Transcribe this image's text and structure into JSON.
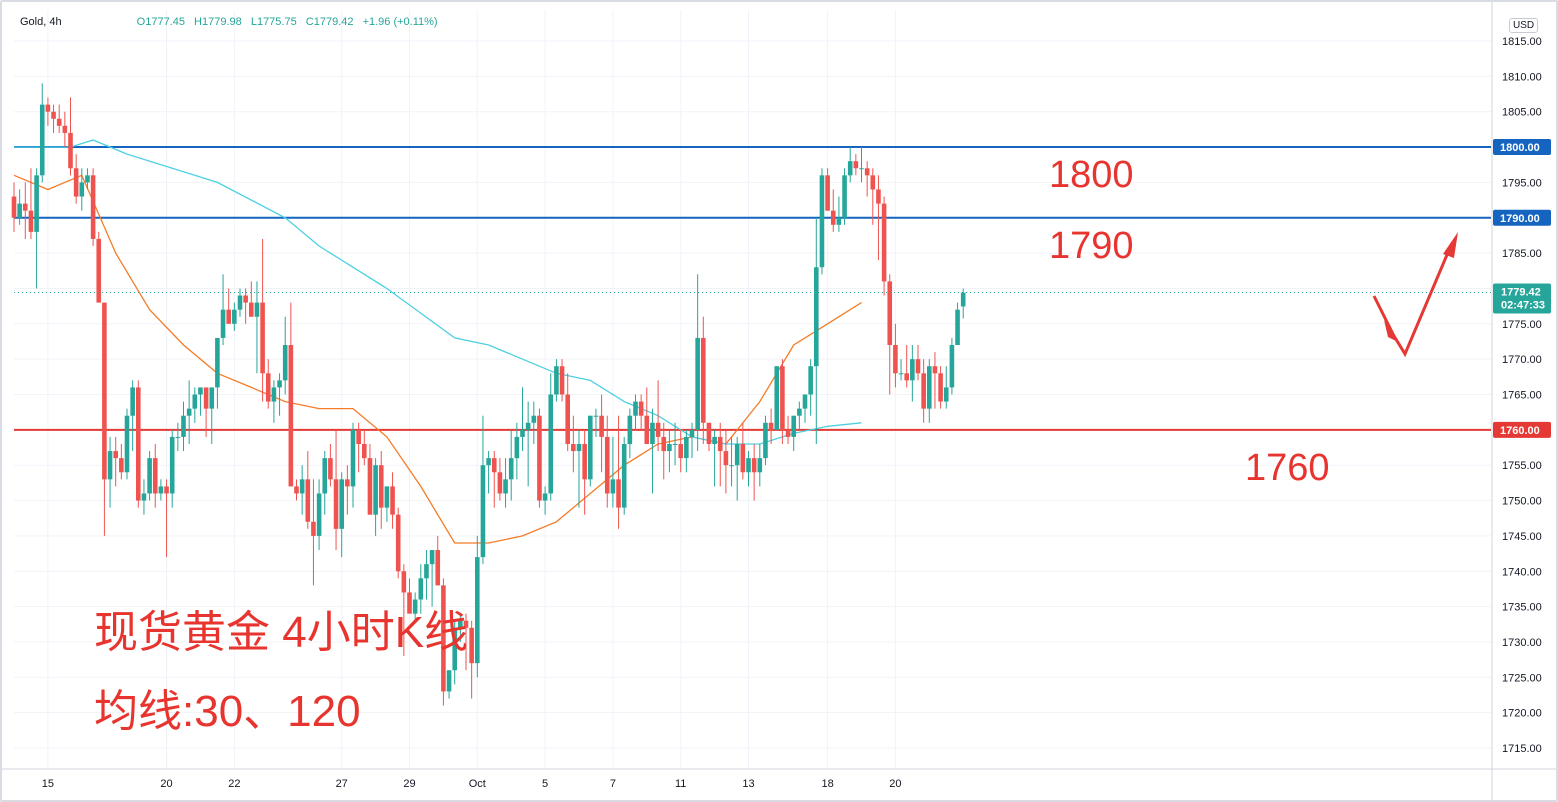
{
  "legend": {
    "symbol": "Gold, 4h",
    "open": "O1777.45",
    "high": "H1779.98",
    "low": "L1775.75",
    "close": "C1779.42",
    "change": "+1.96 (+0.11%)"
  },
  "currency": "USD",
  "price_tag": {
    "price": "1779.42",
    "countdown": "02:47:33"
  },
  "annotations": {
    "level_1800": "1800",
    "level_1790": "1790",
    "level_1760": "1760",
    "title": "现货黄金 4小时K线",
    "ma_note": "均线:30、120"
  },
  "colors": {
    "up": "#26a69a",
    "down": "#ef5350",
    "ma30": "#f57c28",
    "ma120": "#4dd0e1",
    "hline_blue": "#1565c0",
    "hline_red": "#e53935",
    "annotation": "#e8342e",
    "arrow": "#e53935"
  },
  "chart_data": {
    "type": "candlestick",
    "title": "现货黄金 4小时K线",
    "symbol": "Gold",
    "interval": "4h",
    "ylim": [
      1711,
      1818
    ],
    "y_ticks": [
      1715,
      1720,
      1725,
      1730,
      1735,
      1740,
      1745,
      1750,
      1755,
      1760,
      1765,
      1770,
      1775,
      1780,
      1785,
      1790,
      1795,
      1800,
      1805,
      1810,
      1815
    ],
    "x_labels": [
      {
        "label": "15",
        "bar": 6
      },
      {
        "label": "20",
        "bar": 27
      },
      {
        "label": "22",
        "bar": 39
      },
      {
        "label": "27",
        "bar": 58
      },
      {
        "label": "29",
        "bar": 70
      },
      {
        "label": "Oct",
        "bar": 82
      },
      {
        "label": "5",
        "bar": 94
      },
      {
        "label": "7",
        "bar": 106
      },
      {
        "label": "11",
        "bar": 118
      },
      {
        "label": "13",
        "bar": 130
      },
      {
        "label": "18",
        "bar": 144
      },
      {
        "label": "20",
        "bar": 156
      }
    ],
    "horizontal_lines": [
      {
        "price": 1800,
        "label": "1800.00",
        "color": "blue"
      },
      {
        "price": 1790,
        "label": "1790.00",
        "color": "blue"
      },
      {
        "price": 1760,
        "label": "1760.00",
        "color": "red"
      }
    ],
    "moving_averages": [
      {
        "name": "MA30",
        "color": "#f57c28",
        "points": [
          [
            0,
            1796
          ],
          [
            6,
            1794
          ],
          [
            12,
            1796
          ],
          [
            18,
            1785
          ],
          [
            24,
            1777
          ],
          [
            30,
            1772
          ],
          [
            36,
            1768
          ],
          [
            42,
            1766
          ],
          [
            48,
            1764
          ],
          [
            54,
            1763
          ],
          [
            60,
            1763
          ],
          [
            66,
            1759
          ],
          [
            72,
            1752
          ],
          [
            78,
            1744
          ],
          [
            84,
            1744
          ],
          [
            90,
            1745
          ],
          [
            96,
            1747
          ],
          [
            102,
            1751
          ],
          [
            108,
            1755
          ],
          [
            114,
            1758
          ],
          [
            120,
            1759
          ],
          [
            126,
            1758
          ],
          [
            132,
            1764
          ],
          [
            138,
            1772
          ],
          [
            144,
            1775
          ],
          [
            150,
            1778
          ]
        ]
      },
      {
        "name": "MA120",
        "color": "#4dd0e1",
        "points": [
          [
            0,
            1800
          ],
          [
            10,
            1800
          ],
          [
            14,
            1801
          ],
          [
            20,
            1799
          ],
          [
            36,
            1795
          ],
          [
            48,
            1790
          ],
          [
            54,
            1786
          ],
          [
            66,
            1780
          ],
          [
            78,
            1773
          ],
          [
            84,
            1772
          ],
          [
            96,
            1768
          ],
          [
            102,
            1767
          ],
          [
            108,
            1764
          ],
          [
            114,
            1762
          ],
          [
            120,
            1759
          ],
          [
            126,
            1758
          ],
          [
            132,
            1758
          ],
          [
            138,
            1759.5
          ],
          [
            144,
            1760.5
          ],
          [
            150,
            1761
          ]
        ]
      }
    ],
    "bars": [
      [
        1793,
        1795,
        1788,
        1790
      ],
      [
        1790,
        1794,
        1789,
        1792
      ],
      [
        1792,
        1795,
        1787,
        1791
      ],
      [
        1791,
        1797,
        1787,
        1788
      ],
      [
        1788,
        1797,
        1780,
        1796
      ],
      [
        1796,
        1809,
        1795,
        1806
      ],
      [
        1806,
        1807,
        1803,
        1805
      ],
      [
        1805,
        1806,
        1802,
        1804
      ],
      [
        1804,
        1806,
        1802,
        1803
      ],
      [
        1803,
        1805,
        1800,
        1802
      ],
      [
        1802,
        1807,
        1796,
        1797
      ],
      [
        1797,
        1799,
        1792,
        1793
      ],
      [
        1793,
        1797,
        1791,
        1795
      ],
      [
        1795,
        1797,
        1794,
        1796
      ],
      [
        1796,
        1797,
        1786,
        1787
      ],
      [
        1787,
        1788,
        1778,
        1778
      ],
      [
        1778,
        1778,
        1745,
        1753
      ],
      [
        1753,
        1759,
        1749,
        1757
      ],
      [
        1757,
        1759,
        1752,
        1756
      ],
      [
        1756,
        1758,
        1753,
        1754
      ],
      [
        1754,
        1763,
        1753,
        1762
      ],
      [
        1762,
        1767,
        1757,
        1766
      ],
      [
        1766,
        1767,
        1749,
        1750
      ],
      [
        1750,
        1753,
        1748,
        1751
      ],
      [
        1751,
        1757,
        1750,
        1756
      ],
      [
        1756,
        1758,
        1749,
        1751
      ],
      [
        1751,
        1753,
        1750,
        1752
      ],
      [
        1752,
        1753,
        1742,
        1751
      ],
      [
        1751,
        1760,
        1749,
        1759
      ],
      [
        1759,
        1761,
        1757,
        1759
      ],
      [
        1759,
        1764,
        1757,
        1762
      ],
      [
        1762,
        1767,
        1758,
        1763
      ],
      [
        1763,
        1766,
        1761,
        1765
      ],
      [
        1765,
        1766,
        1762,
        1766
      ],
      [
        1766,
        1766,
        1759,
        1763
      ],
      [
        1763,
        1766,
        1758,
        1766
      ],
      [
        1766,
        1773,
        1763,
        1773
      ],
      [
        1773,
        1782,
        1772,
        1777
      ],
      [
        1777,
        1780,
        1776,
        1775
      ],
      [
        1775,
        1778,
        1774,
        1777
      ],
      [
        1777,
        1780,
        1776,
        1779
      ],
      [
        1779,
        1780,
        1775,
        1778
      ],
      [
        1778,
        1781,
        1776,
        1776
      ],
      [
        1776,
        1781,
        1768,
        1778
      ],
      [
        1778,
        1787,
        1764,
        1768
      ],
      [
        1768,
        1770,
        1763,
        1764
      ],
      [
        1764,
        1767,
        1761,
        1766
      ],
      [
        1766,
        1768,
        1762,
        1767
      ],
      [
        1767,
        1776,
        1765,
        1772
      ],
      [
        1772,
        1778,
        1760,
        1752
      ],
      [
        1752,
        1753,
        1750,
        1751
      ],
      [
        1751,
        1755,
        1748,
        1753
      ],
      [
        1753,
        1757,
        1746,
        1747
      ],
      [
        1747,
        1753,
        1738,
        1745
      ],
      [
        1745,
        1753,
        1743,
        1751
      ],
      [
        1751,
        1757,
        1748,
        1756
      ],
      [
        1756,
        1758,
        1752,
        1753
      ],
      [
        1753,
        1760,
        1743,
        1746
      ],
      [
        1746,
        1754,
        1742,
        1753
      ],
      [
        1753,
        1755,
        1748,
        1752
      ],
      [
        1752,
        1761,
        1749,
        1760
      ],
      [
        1760,
        1761,
        1754,
        1758
      ],
      [
        1758,
        1760,
        1755,
        1756
      ],
      [
        1756,
        1758,
        1748,
        1748
      ],
      [
        1748,
        1756,
        1745,
        1755
      ],
      [
        1755,
        1757,
        1746,
        1749
      ],
      [
        1749,
        1752,
        1747,
        1752
      ],
      [
        1752,
        1754,
        1746,
        1748
      ],
      [
        1748,
        1749,
        1739,
        1740
      ],
      [
        1740,
        1741,
        1728,
        1737
      ],
      [
        1737,
        1739,
        1734,
        1734
      ],
      [
        1734,
        1737,
        1733,
        1736
      ],
      [
        1736,
        1741,
        1734,
        1739
      ],
      [
        1739,
        1743,
        1736,
        1741
      ],
      [
        1741,
        1743,
        1735,
        1743
      ],
      [
        1743,
        1745,
        1738,
        1738
      ],
      [
        1738,
        1739,
        1721,
        1723
      ],
      [
        1723,
        1726,
        1722,
        1726
      ],
      [
        1726,
        1733,
        1724,
        1732
      ],
      [
        1732,
        1734,
        1730,
        1733
      ],
      [
        1733,
        1734,
        1726,
        1732
      ],
      [
        1732,
        1733,
        1722,
        1727
      ],
      [
        1727,
        1745,
        1725,
        1742
      ],
      [
        1742,
        1762,
        1741,
        1755
      ],
      [
        1755,
        1757,
        1751,
        1756
      ],
      [
        1756,
        1757,
        1749,
        1754
      ],
      [
        1754,
        1756,
        1750,
        1751
      ],
      [
        1751,
        1756,
        1749,
        1753
      ],
      [
        1753,
        1760,
        1750,
        1756
      ],
      [
        1756,
        1761,
        1753,
        1759
      ],
      [
        1759,
        1766,
        1757,
        1760
      ],
      [
        1760,
        1764,
        1752,
        1761
      ],
      [
        1761,
        1764,
        1758,
        1762
      ],
      [
        1762,
        1763,
        1749,
        1750
      ],
      [
        1750,
        1752,
        1748,
        1751
      ],
      [
        1751,
        1768,
        1750,
        1765
      ],
      [
        1765,
        1770,
        1764,
        1769
      ],
      [
        1769,
        1770,
        1764,
        1765
      ],
      [
        1765,
        1768,
        1757,
        1758
      ],
      [
        1758,
        1762,
        1754,
        1757
      ],
      [
        1757,
        1760,
        1749,
        1758
      ],
      [
        1758,
        1760,
        1748,
        1753
      ],
      [
        1753,
        1762,
        1752,
        1762
      ],
      [
        1762,
        1763,
        1759,
        1762
      ],
      [
        1762,
        1765,
        1754,
        1759
      ],
      [
        1759,
        1762,
        1749,
        1751
      ],
      [
        1751,
        1759,
        1749,
        1753
      ],
      [
        1753,
        1762,
        1746,
        1749
      ],
      [
        1749,
        1759,
        1748,
        1758
      ],
      [
        1758,
        1763,
        1756,
        1762
      ],
      [
        1762,
        1765,
        1760,
        1764
      ],
      [
        1764,
        1765,
        1760,
        1762
      ],
      [
        1762,
        1766,
        1758,
        1758
      ],
      [
        1758,
        1763,
        1751,
        1761
      ],
      [
        1761,
        1767,
        1757,
        1759
      ],
      [
        1759,
        1761,
        1753,
        1757
      ],
      [
        1757,
        1760,
        1754,
        1758
      ],
      [
        1758,
        1761,
        1755,
        1758
      ],
      [
        1758,
        1760,
        1754,
        1756
      ],
      [
        1756,
        1760,
        1754,
        1759
      ],
      [
        1759,
        1761,
        1756,
        1760
      ],
      [
        1760,
        1782,
        1757,
        1773
      ],
      [
        1773,
        1776,
        1758,
        1761
      ],
      [
        1761,
        1761,
        1757,
        1758
      ],
      [
        1758,
        1760,
        1752,
        1759
      ],
      [
        1759,
        1761,
        1752,
        1757
      ],
      [
        1757,
        1760,
        1751,
        1755
      ],
      [
        1755,
        1759,
        1752,
        1755
      ],
      [
        1755,
        1759,
        1750,
        1758
      ],
      [
        1758,
        1761,
        1753,
        1754
      ],
      [
        1754,
        1757,
        1752,
        1756
      ],
      [
        1756,
        1758,
        1750,
        1754
      ],
      [
        1754,
        1758,
        1752,
        1756
      ],
      [
        1756,
        1762,
        1755,
        1761
      ],
      [
        1761,
        1763,
        1758,
        1760
      ],
      [
        1760,
        1769,
        1760,
        1769
      ],
      [
        1769,
        1770,
        1758,
        1760
      ],
      [
        1760,
        1762,
        1758,
        1759
      ],
      [
        1759,
        1762,
        1757,
        1762
      ],
      [
        1762,
        1764,
        1760,
        1763
      ],
      [
        1763,
        1765,
        1761,
        1765
      ],
      [
        1765,
        1770,
        1762,
        1769
      ],
      [
        1769,
        1790,
        1758,
        1783
      ],
      [
        1783,
        1797,
        1782,
        1796
      ],
      [
        1796,
        1797,
        1791,
        1791
      ],
      [
        1791,
        1794,
        1788,
        1789
      ],
      [
        1789,
        1793,
        1788,
        1790
      ],
      [
        1790,
        1797,
        1789,
        1796
      ],
      [
        1796,
        1800,
        1795,
        1798
      ],
      [
        1798,
        1799,
        1796,
        1797
      ],
      [
        1797,
        1800,
        1795,
        1797
      ],
      [
        1797,
        1798,
        1793,
        1796
      ],
      [
        1796,
        1797,
        1789,
        1794
      ],
      [
        1794,
        1796,
        1784,
        1792
      ],
      [
        1792,
        1793,
        1779,
        1781
      ],
      [
        1781,
        1782,
        1765,
        1772
      ],
      [
        1772,
        1775,
        1766,
        1768
      ],
      [
        1768,
        1770,
        1767,
        1768
      ],
      [
        1768,
        1772,
        1766,
        1767
      ],
      [
        1767,
        1772,
        1764,
        1770
      ],
      [
        1770,
        1772,
        1767,
        1768
      ],
      [
        1768,
        1770,
        1761,
        1763
      ],
      [
        1763,
        1770,
        1761,
        1769
      ],
      [
        1769,
        1771,
        1763,
        1768
      ],
      [
        1768,
        1769,
        1763,
        1764
      ],
      [
        1764,
        1769,
        1763,
        1766
      ],
      [
        1766,
        1773,
        1765,
        1772
      ],
      [
        1772,
        1778,
        1772,
        1777
      ],
      [
        1777.45,
        1779.98,
        1775.75,
        1779.42
      ]
    ]
  }
}
